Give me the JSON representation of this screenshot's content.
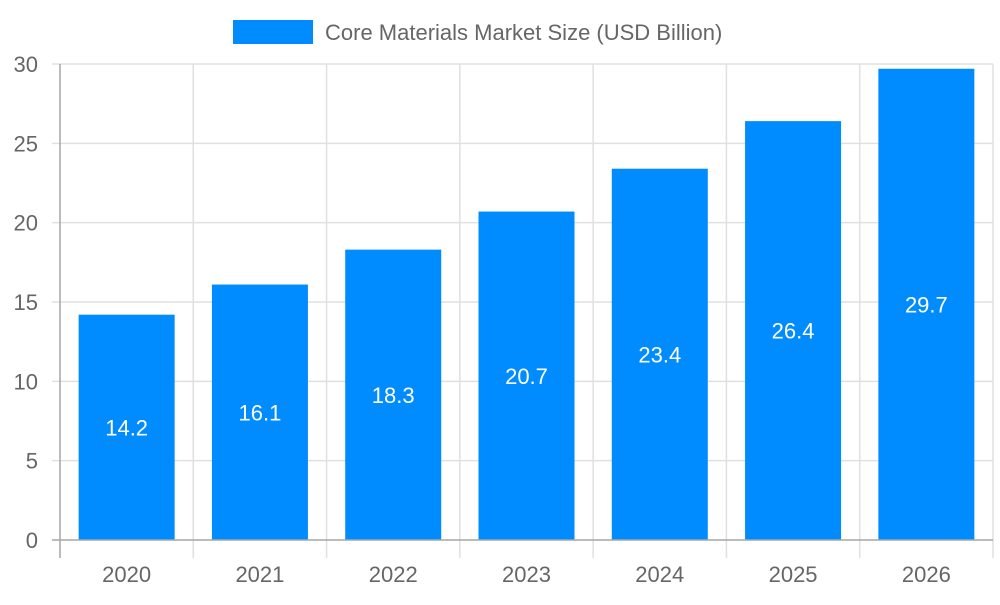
{
  "chart_data": {
    "type": "bar",
    "title": "",
    "xlabel": "",
    "ylabel": "",
    "categories": [
      "2020",
      "2021",
      "2022",
      "2023",
      "2024",
      "2025",
      "2026"
    ],
    "series": [
      {
        "name": "Core Materials Market Size (USD Billion)",
        "values": [
          14.2,
          16.1,
          18.3,
          20.7,
          23.4,
          26.4,
          29.7
        ],
        "color": "#008cff"
      }
    ],
    "ylim": [
      0,
      30
    ],
    "yticks": [
      0,
      5,
      10,
      15,
      20,
      25,
      30
    ],
    "grid": true,
    "legend_position": "top",
    "data_labels": true,
    "colors": {
      "grid": "#e0e0e0",
      "axis": "#a6a6a6",
      "tick_text": "#666666",
      "data_label": "#ffffff"
    }
  }
}
